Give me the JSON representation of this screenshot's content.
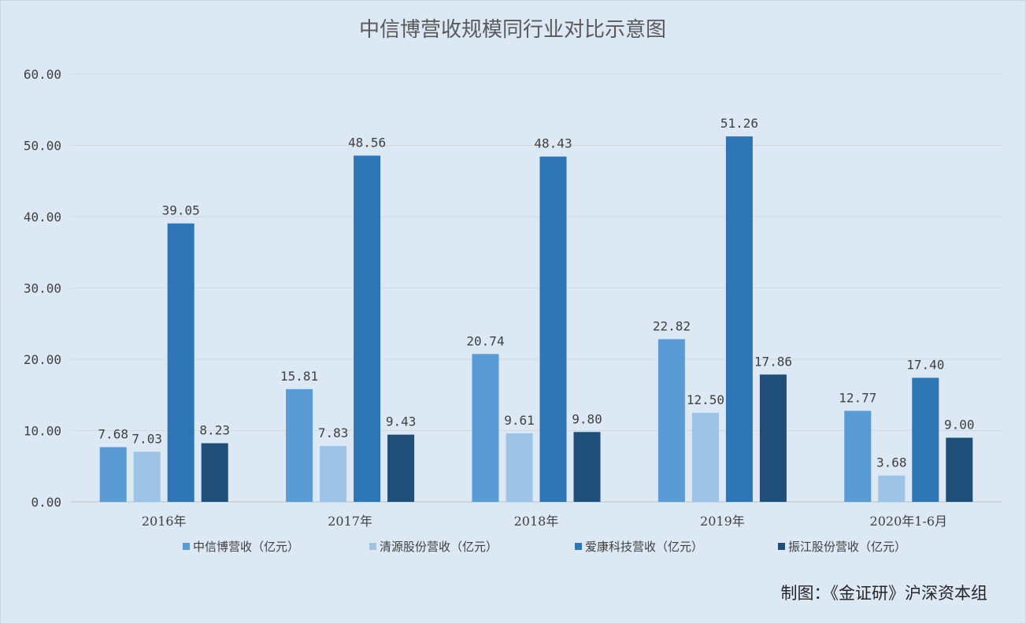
{
  "chart_data": {
    "type": "bar",
    "title": "中信博营收规模同行业对比示意图",
    "categories": [
      "2016年",
      "2017年",
      "2018年",
      "2019年",
      "2020年1-6月"
    ],
    "yticks": [
      "0.00",
      "10.00",
      "20.00",
      "30.00",
      "40.00",
      "50.00",
      "60.00"
    ],
    "ylim": [
      0,
      60
    ],
    "grid": true,
    "legend_position": "bottom",
    "series": [
      {
        "name": "中信博营收（亿元）",
        "color": "#5b9bd5",
        "values": [
          7.68,
          15.81,
          20.74,
          22.82,
          12.77
        ],
        "labels": [
          "7.68",
          "15.81",
          "20.74",
          "22.82",
          "12.77"
        ]
      },
      {
        "name": "清源股份营收（亿元）",
        "color": "#9dc3e6",
        "values": [
          7.03,
          7.83,
          9.61,
          12.5,
          3.68
        ],
        "labels": [
          "7.03",
          "7.83",
          "9.61",
          "12.50",
          "3.68"
        ]
      },
      {
        "name": "爱康科技营收（亿元）",
        "color": "#2e75b6",
        "values": [
          39.05,
          48.56,
          48.43,
          51.26,
          17.4
        ],
        "labels": [
          "39.05",
          "48.56",
          "48.43",
          "51.26",
          "17.40"
        ]
      },
      {
        "name": "振江股份营收（亿元）",
        "color": "#1f4e79",
        "values": [
          8.23,
          9.43,
          9.8,
          17.86,
          9.0
        ],
        "labels": [
          "8.23",
          "9.43",
          "9.80",
          "17.86",
          "9.00"
        ]
      }
    ]
  },
  "credit": "制图：《金证研》沪深资本组"
}
